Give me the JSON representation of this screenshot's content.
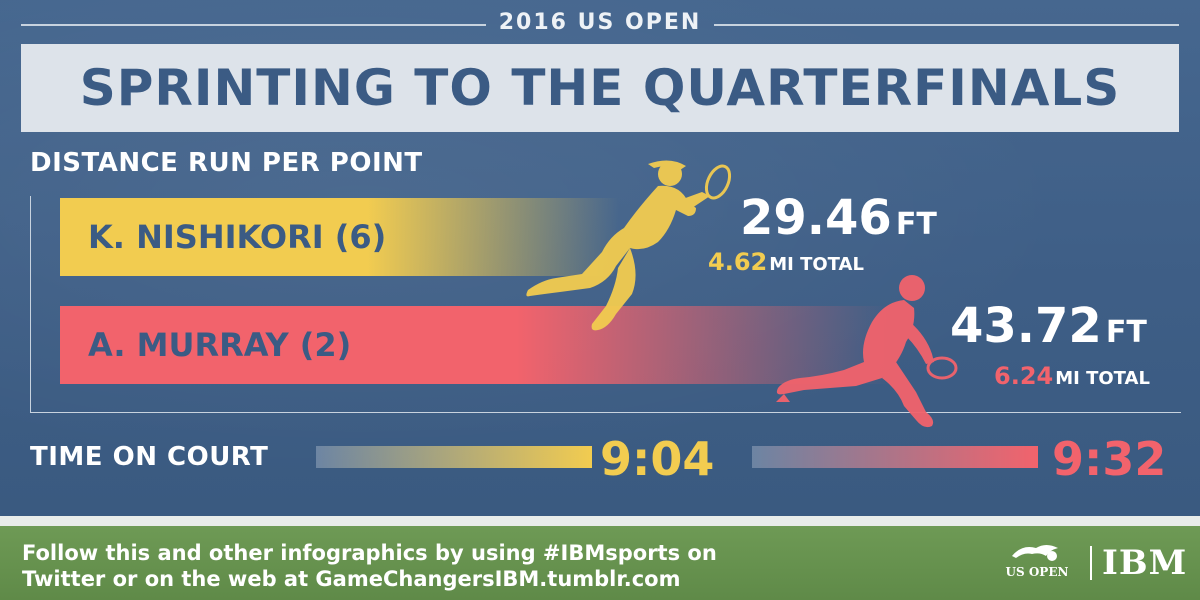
{
  "supertitle": "2016 US OPEN",
  "title": "SPRINTING TO THE QUARTERFINALS",
  "colors": {
    "nishikori": "#f2cc50",
    "murray": "#f2636c",
    "navy": "#3b5b84"
  },
  "chart_data": {
    "type": "bar",
    "title": "DISTANCE RUN PER POINT",
    "categories": [
      "K. NISHIKORI (6)",
      "A. MURRAY (2)"
    ],
    "series": [
      {
        "values": [
          29.46,
          43.72
        ]
      }
    ],
    "players": [
      {
        "label": "K. NISHIKORI (6)",
        "distance_per_point": "29.46",
        "distance_unit": "FT",
        "total": "4.62",
        "total_unit": "MI TOTAL",
        "time_on_court": "9:04",
        "color": "#f2cc50"
      },
      {
        "label": "A. MURRAY (2)",
        "distance_per_point": "43.72",
        "distance_unit": "FT",
        "total": "6.24",
        "total_unit": "MI TOTAL",
        "time_on_court": "9:32",
        "color": "#f2636c"
      }
    ],
    "time_label": "TIME ON COURT"
  },
  "footer": {
    "line1": "Follow this and other infographics by using #IBMsports on",
    "line2": "Twitter or on the web at GameChangersIBM.tumblr.com",
    "logo_usopen": "US OPEN",
    "logo_ibm": "IBM"
  }
}
